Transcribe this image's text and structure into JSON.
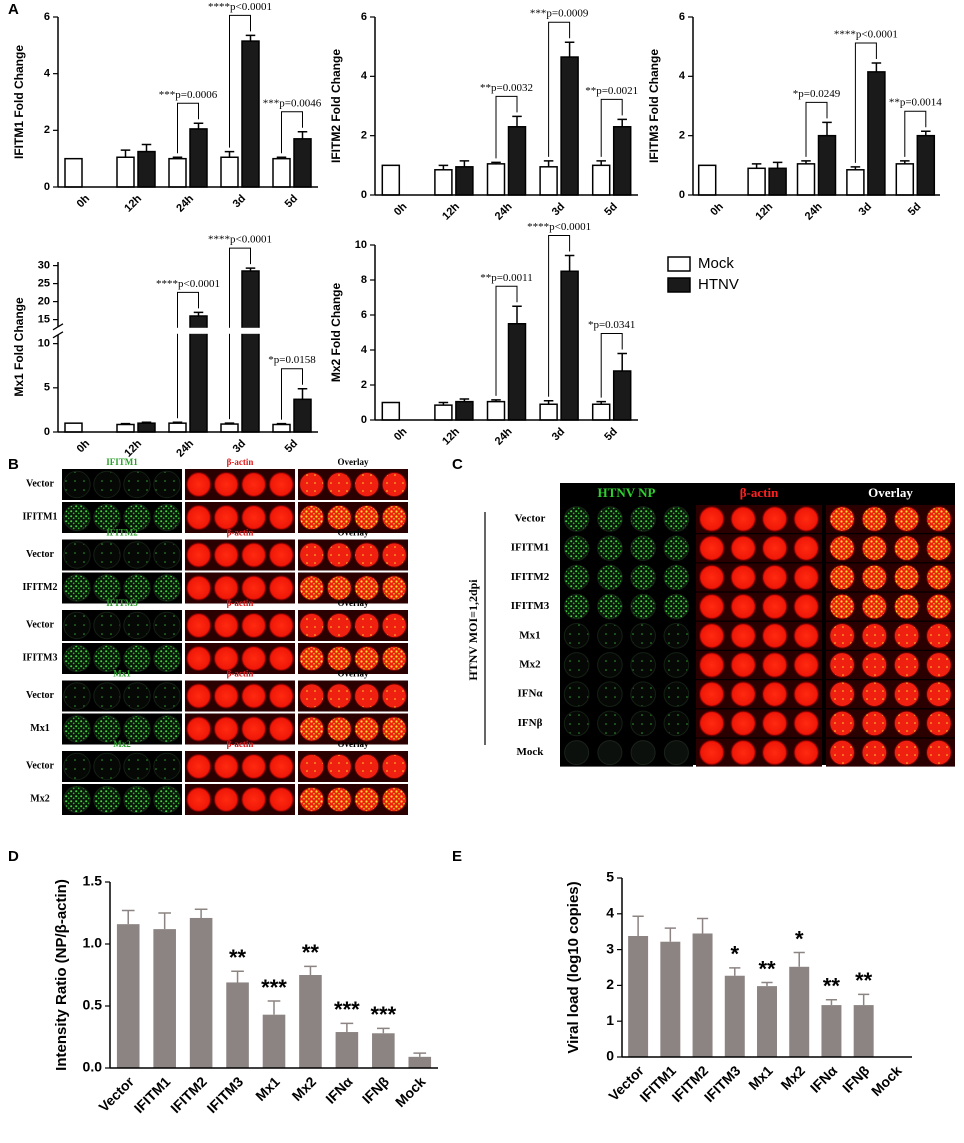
{
  "panel_labels": [
    "A",
    "B",
    "C",
    "D",
    "E"
  ],
  "legend": [
    {
      "name": "Mock",
      "color": "#ffffff"
    },
    {
      "name": "HTNV",
      "color": "#1a1a1a"
    }
  ],
  "chart_data": [
    {
      "type": "bar",
      "ylabel": "IFITM1 Fold Change",
      "categories": [
        "0h",
        "12h",
        "24h",
        "3d",
        "5d"
      ],
      "series": [
        {
          "values": [
            1.0,
            1.05,
            1.0,
            1.05,
            1.0
          ],
          "errors": [
            0,
            0.25,
            0.05,
            0.2,
            0.05
          ]
        },
        {
          "values": [
            null,
            1.25,
            2.05,
            5.15,
            1.7
          ],
          "errors": [
            null,
            0.25,
            0.2,
            0.2,
            0.25
          ]
        }
      ],
      "ylim": [
        0,
        6
      ],
      "yticks": [
        0,
        2,
        4,
        6
      ],
      "annotations": [
        null,
        null,
        "***p=0.0006",
        "****p<0.0001",
        "***p=0.0046"
      ]
    },
    {
      "type": "bar",
      "ylabel": "IFITM2 Fold Change",
      "categories": [
        "0h",
        "12h",
        "24h",
        "3d",
        "5d"
      ],
      "series": [
        {
          "values": [
            1.0,
            0.85,
            1.05,
            0.95,
            1.0
          ],
          "errors": [
            0,
            0.15,
            0.05,
            0.2,
            0.15
          ]
        },
        {
          "values": [
            null,
            0.95,
            2.3,
            4.65,
            2.3
          ],
          "errors": [
            null,
            0.2,
            0.35,
            0.5,
            0.25
          ]
        }
      ],
      "ylim": [
        0,
        6
      ],
      "yticks": [
        0,
        2,
        4,
        6
      ],
      "annotations": [
        null,
        null,
        "**p=0.0032",
        "***p=0.0009",
        "**p=0.0021"
      ]
    },
    {
      "type": "bar",
      "ylabel": "IFITM3 Fold Change",
      "categories": [
        "0h",
        "12h",
        "24h",
        "3d",
        "5d"
      ],
      "series": [
        {
          "values": [
            1.0,
            0.9,
            1.05,
            0.85,
            1.05
          ],
          "errors": [
            0,
            0.15,
            0.1,
            0.1,
            0.1
          ]
        },
        {
          "values": [
            null,
            0.9,
            2.0,
            4.15,
            2.0
          ],
          "errors": [
            null,
            0.2,
            0.45,
            0.3,
            0.15
          ]
        }
      ],
      "ylim": [
        0,
        6
      ],
      "yticks": [
        0,
        2,
        4,
        6
      ],
      "annotations": [
        null,
        null,
        "*p=0.0249",
        "****p<0.0001",
        "**p=0.0014"
      ]
    },
    {
      "type": "bar",
      "ylabel": "Mx1 Fold Change",
      "categories": [
        "0h",
        "12h",
        "24h",
        "3d",
        "5d"
      ],
      "series": [
        {
          "values": [
            1.0,
            0.85,
            1.0,
            0.9,
            0.85
          ],
          "errors": [
            0,
            0.1,
            0.1,
            0.1,
            0.1
          ]
        },
        {
          "values": [
            null,
            1.0,
            16,
            28.5,
            3.7
          ],
          "errors": [
            null,
            0.1,
            1,
            0.8,
            1.2
          ]
        }
      ],
      "ylim": [
        0,
        31
      ],
      "ybreak": [
        11,
        13
      ],
      "yticks": [
        0,
        5,
        10,
        15,
        20,
        25,
        30
      ],
      "annotations": [
        null,
        null,
        "****p<0.0001",
        "****p<0.0001",
        "*p=0.0158"
      ]
    },
    {
      "type": "bar",
      "ylabel": "Mx2 Fold Change",
      "categories": [
        "0h",
        "12h",
        "24h",
        "3d",
        "5d"
      ],
      "series": [
        {
          "values": [
            1.0,
            0.85,
            1.05,
            0.9,
            0.9
          ],
          "errors": [
            0,
            0.15,
            0.1,
            0.2,
            0.15
          ]
        },
        {
          "values": [
            null,
            1.05,
            5.5,
            8.5,
            2.8
          ],
          "errors": [
            null,
            0.15,
            1.0,
            0.9,
            1.0
          ]
        }
      ],
      "ylim": [
        0,
        10
      ],
      "yticks": [
        0,
        2,
        4,
        6,
        8,
        10
      ],
      "annotations": [
        null,
        null,
        "**p=0.0011",
        "****p<0.0001",
        "*p=0.0341"
      ]
    },
    {
      "type": "bar",
      "ylabel": "Intensity Ratio (NP/β-actin)",
      "color": "#8c8482",
      "categories": [
        "Vector",
        "IFITM1",
        "IFITM2",
        "IFITM3",
        "Mx1",
        "Mx2",
        "IFNα",
        "IFNβ",
        "Mock"
      ],
      "values": [
        1.16,
        1.12,
        1.21,
        0.69,
        0.43,
        0.75,
        0.29,
        0.28,
        0.09
      ],
      "errors": [
        0.11,
        0.13,
        0.07,
        0.09,
        0.11,
        0.07,
        0.07,
        0.04,
        0.03
      ],
      "ylim": [
        0,
        1.5
      ],
      "yticks": [
        {
          "value": 0,
          "label": "0.0"
        },
        0.5,
        {
          "value": 1,
          "label": "1.0"
        },
        1.5
      ],
      "annotations": [
        null,
        null,
        null,
        "**",
        "***",
        "**",
        "***",
        "***",
        null
      ]
    },
    {
      "type": "bar",
      "ylabel": "Viral load (log10 copies)",
      "color": "#8c8482",
      "categories": [
        "Vector",
        "IFITM1",
        "IFITM2",
        "IFITM3",
        "Mx1",
        "Mx2",
        "IFNα",
        "IFNβ",
        "Mock"
      ],
      "values": [
        3.38,
        3.22,
        3.45,
        2.27,
        1.98,
        2.52,
        1.45,
        1.45,
        0
      ],
      "errors": [
        0.55,
        0.38,
        0.42,
        0.22,
        0.1,
        0.4,
        0.15,
        0.3,
        0
      ],
      "ylim": [
        0,
        5
      ],
      "yticks": [
        0,
        1,
        2,
        3,
        4,
        5
      ],
      "annotations": [
        null,
        null,
        null,
        "*",
        "**",
        "*",
        "**",
        "**",
        null
      ]
    }
  ],
  "panel_b": {
    "groups": [
      {
        "header": [
          "IFITM1",
          "β-actin",
          "Overlay"
        ],
        "rows": [
          "Vector",
          "IFITM1"
        ]
      },
      {
        "header": [
          "IFITM2",
          "β-actin",
          "Overlay"
        ],
        "rows": [
          "Vector",
          "IFITM2"
        ]
      },
      {
        "header": [
          "IFITM3",
          "β-actin",
          "Overlay"
        ],
        "rows": [
          "Vector",
          "IFITM3"
        ]
      },
      {
        "header": [
          "Mx1",
          "β-actin",
          "Overlay"
        ],
        "rows": [
          "Vector",
          "Mx1"
        ]
      },
      {
        "header": [
          "Mx2",
          "β-actin",
          "Overlay"
        ],
        "rows": [
          "Vector",
          "Mx2"
        ]
      }
    ]
  },
  "panel_c": {
    "headers": [
      "HTNV NP",
      "β-actin",
      "Overlay"
    ],
    "side_label": "HTNV MOI=1,2dpi",
    "rows": [
      "Vector",
      "IFITM1",
      "IFITM2",
      "IFITM3",
      "Mx1",
      "Mx2",
      "IFNα",
      "IFNβ",
      "Mock"
    ]
  }
}
